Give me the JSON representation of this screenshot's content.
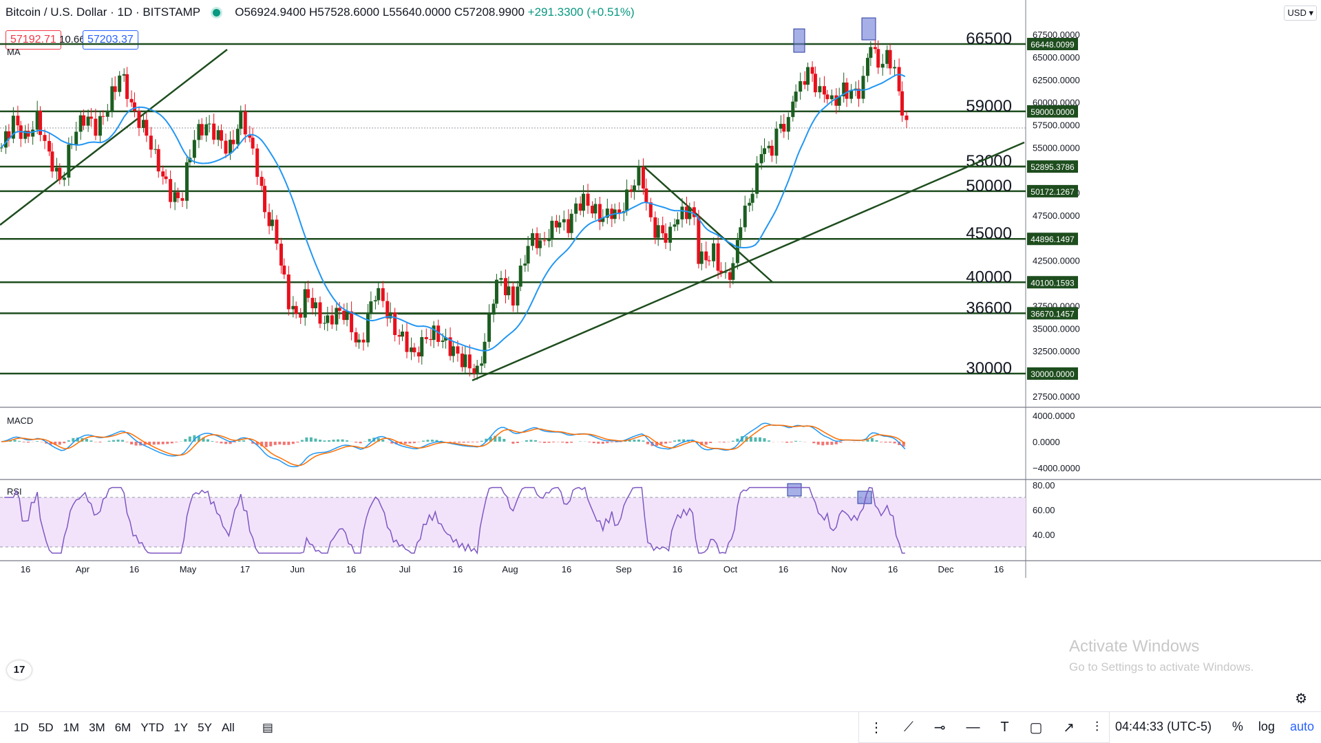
{
  "header": {
    "symbol": "Bitcoin / U.S. Dollar · 1D · BITSTAMP",
    "ohlc": "O56924.9400 H57528.6000 L55640.0000 C57208.9900",
    "change": "+291.3300 (+0.51%)",
    "bid": "57192.71",
    "spread": "10.66",
    "ask": "57203.37",
    "currency": "USD ▾"
  },
  "indicators": {
    "ma": "MA",
    "macd": "MACD",
    "rsi": "RSI"
  },
  "bottombar": {
    "timeframes": [
      "1D",
      "5D",
      "1M",
      "3M",
      "6M",
      "YTD",
      "1Y",
      "5Y",
      "All"
    ],
    "clock": "04:44:33 (UTC-5)",
    "percent": "%",
    "log": "log",
    "auto": "auto"
  },
  "watermark": {
    "line1": "Activate Windows",
    "line2": "Go to Settings to activate Windows."
  },
  "chart_data": {
    "type": "candlestick",
    "title": "Bitcoin / U.S. Dollar · 1D · BITSTAMP",
    "ylim": [
      26000,
      70000
    ],
    "y_ticks": [
      "67500.0000",
      "65000.0000",
      "62500.0000",
      "60000.0000",
      "57500.0000",
      "55000.0000",
      "50000.0000",
      "47500.0000",
      "42500.0000",
      "37500.0000",
      "35000.0000",
      "32500.0000",
      "27500.0000"
    ],
    "x_ticks": [
      "16",
      "Apr",
      "16",
      "May",
      "17",
      "Jun",
      "16",
      "Jul",
      "16",
      "Aug",
      "16",
      "Sep",
      "16",
      "Oct",
      "16",
      "Nov",
      "16",
      "Dec",
      "16"
    ],
    "levels": [
      {
        "label": "66500",
        "value": 66448.0099,
        "tag": "66448.0099"
      },
      {
        "label": "59000",
        "value": 59000,
        "tag": "59000.0000"
      },
      {
        "label": "53000",
        "value": 52895.3786,
        "tag": "52895.3786"
      },
      {
        "label": "50000",
        "value": 50172.1267,
        "tag": "50172.1267"
      },
      {
        "label": "45000",
        "value": 44896.1497,
        "tag": "44896.1497"
      },
      {
        "label": "40000",
        "value": 40100.1593,
        "tag": "40100.1593"
      },
      {
        "label": "36600",
        "value": 36670.1457,
        "tag": "36670.1457"
      },
      {
        "label": "30000",
        "value": 30000,
        "tag": "30000.0000"
      }
    ],
    "last_price": 57208.99,
    "close_path": [
      [
        0,
        55000
      ],
      [
        8,
        58000
      ],
      [
        16,
        56000
      ],
      [
        24,
        58200
      ],
      [
        32,
        54000
      ],
      [
        40,
        51000
      ],
      [
        48,
        56500
      ],
      [
        56,
        58500
      ],
      [
        64,
        57000
      ],
      [
        72,
        60000
      ],
      [
        80,
        63500
      ],
      [
        88,
        59000
      ],
      [
        96,
        57000
      ],
      [
        104,
        53500
      ],
      [
        112,
        50000
      ],
      [
        120,
        49000
      ],
      [
        128,
        56000
      ],
      [
        136,
        57500
      ],
      [
        144,
        56500
      ],
      [
        152,
        54500
      ],
      [
        160,
        58200
      ],
      [
        164,
        57000
      ],
      [
        172,
        52000
      ],
      [
        176,
        48000
      ],
      [
        184,
        45000
      ],
      [
        188,
        41000
      ],
      [
        192,
        38000
      ],
      [
        198,
        36000
      ],
      [
        204,
        39000
      ],
      [
        210,
        37000
      ],
      [
        216,
        35500
      ],
      [
        222,
        36500
      ],
      [
        228,
        37000
      ],
      [
        234,
        35000
      ],
      [
        240,
        32500
      ],
      [
        244,
        36000
      ],
      [
        250,
        39000
      ],
      [
        254,
        38500
      ],
      [
        262,
        35000
      ],
      [
        270,
        33500
      ],
      [
        276,
        32000
      ],
      [
        284,
        34000
      ],
      [
        290,
        34500
      ],
      [
        296,
        33500
      ],
      [
        302,
        32500
      ],
      [
        308,
        31500
      ],
      [
        314,
        30800
      ],
      [
        318,
        30000
      ],
      [
        322,
        32500
      ],
      [
        326,
        36000
      ],
      [
        330,
        39500
      ],
      [
        334,
        40500
      ],
      [
        338,
        39000
      ],
      [
        342,
        38000
      ],
      [
        346,
        40500
      ],
      [
        350,
        43000
      ],
      [
        356,
        45500
      ],
      [
        360,
        44000
      ],
      [
        366,
        45500
      ],
      [
        372,
        47000
      ],
      [
        378,
        46000
      ],
      [
        384,
        48500
      ],
      [
        390,
        49200
      ],
      [
        396,
        48000
      ],
      [
        402,
        47200
      ],
      [
        408,
        48000
      ],
      [
        412,
        47200
      ],
      [
        418,
        49500
      ],
      [
        424,
        51500
      ],
      [
        428,
        52500
      ],
      [
        432,
        47500
      ],
      [
        436,
        46000
      ],
      [
        442,
        45500
      ],
      [
        446,
        44800
      ],
      [
        450,
        47000
      ],
      [
        456,
        47800
      ],
      [
        462,
        48200
      ],
      [
        466,
        43000
      ],
      [
        470,
        42500
      ],
      [
        476,
        43500
      ],
      [
        480,
        41500
      ],
      [
        484,
        40500
      ],
      [
        490,
        42000
      ],
      [
        494,
        47000
      ],
      [
        498,
        48000
      ],
      [
        504,
        51500
      ],
      [
        508,
        55000
      ],
      [
        514,
        54500
      ],
      [
        520,
        57500
      ],
      [
        526,
        57500
      ],
      [
        530,
        61500
      ],
      [
        536,
        61500
      ],
      [
        538,
        64000
      ],
      [
        544,
        62000
      ],
      [
        548,
        60800
      ],
      [
        552,
        61000
      ],
      [
        556,
        59500
      ],
      [
        562,
        61500
      ],
      [
        568,
        61000
      ],
      [
        574,
        61300
      ],
      [
        578,
        63000
      ],
      [
        580,
        67200
      ],
      [
        584,
        65000
      ],
      [
        588,
        64000
      ],
      [
        592,
        65100
      ],
      [
        596,
        64200
      ],
      [
        600,
        61000
      ],
      [
        603,
        58500
      ],
      [
        605,
        57200
      ]
    ],
    "macd_ylim": [
      -5000,
      5000
    ],
    "macd_ticks": [
      "4000.0000",
      "0.0000",
      "−4000.0000"
    ],
    "rsi_ylim": [
      20,
      85
    ],
    "rsi_ticks": [
      "80.00",
      "60.00",
      "40.00"
    ],
    "rsi_band": [
      30,
      70
    ]
  }
}
